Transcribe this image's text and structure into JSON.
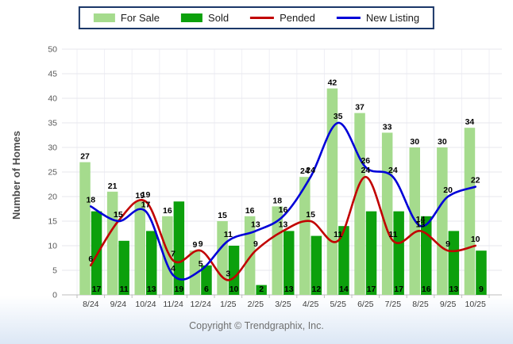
{
  "legend": {
    "items": [
      {
        "label": "For Sale",
        "type": "bar",
        "color": "#a5db8d"
      },
      {
        "label": "Sold",
        "type": "bar",
        "color": "#0ca00c"
      },
      {
        "label": "Pended",
        "type": "line",
        "color": "#c10000"
      },
      {
        "label": "New Listing",
        "type": "line",
        "color": "#0000d8"
      }
    ],
    "border_color": "#1b3768"
  },
  "chart_data": {
    "type": "bar",
    "title": "",
    "xlabel": "",
    "ylabel": "Number of Homes",
    "ylim": [
      0,
      50
    ],
    "ytick_step": 5,
    "grid": true,
    "legend_position": "top-center",
    "categories": [
      "8/24",
      "9/24",
      "10/24",
      "11/24",
      "12/24",
      "1/25",
      "2/25",
      "3/25",
      "4/25",
      "5/25",
      "6/25",
      "7/25",
      "8/25",
      "9/25",
      "10/25"
    ],
    "series": [
      {
        "name": "For Sale",
        "type": "bar",
        "color": "#a5db8d",
        "values": [
          27,
          21,
          19,
          16,
          9,
          15,
          16,
          18,
          24,
          42,
          37,
          33,
          30,
          30,
          34
        ]
      },
      {
        "name": "Sold",
        "type": "bar",
        "color": "#0ca00c",
        "values": [
          17,
          11,
          13,
          19,
          6,
          10,
          2,
          13,
          12,
          14,
          17,
          17,
          16,
          13,
          9
        ]
      },
      {
        "name": "Pended",
        "type": "line",
        "color": "#c10000",
        "values": [
          6,
          15,
          19,
          7,
          9,
          3,
          9,
          13,
          15,
          11,
          24,
          11,
          13,
          9,
          10
        ]
      },
      {
        "name": "New Listing",
        "type": "line",
        "color": "#0000d8",
        "values": [
          18,
          15,
          17,
          4,
          5,
          11,
          13,
          16,
          24,
          35,
          26,
          24,
          14,
          20,
          22
        ]
      }
    ]
  },
  "footer": {
    "copyright": "Copyright © Trendgraphix, Inc."
  }
}
